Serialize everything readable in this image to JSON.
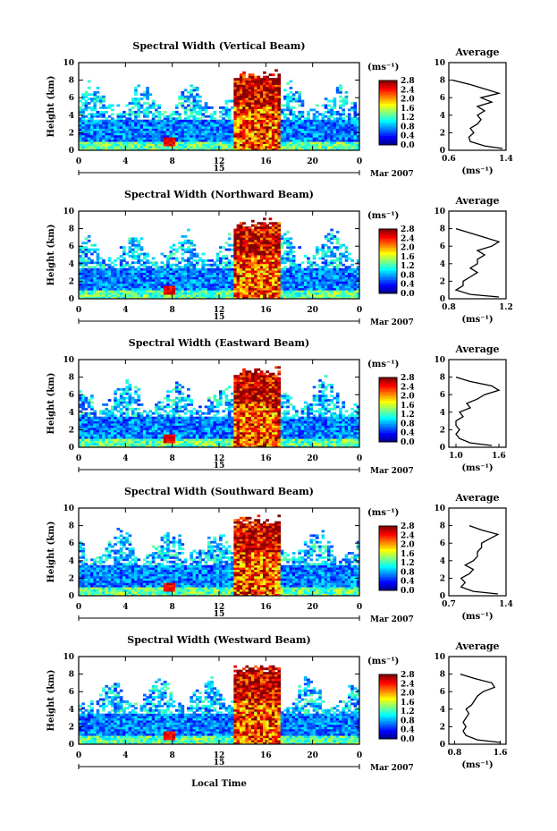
{
  "figure": {
    "xlabel": "Local Time",
    "date_label": "Mar 2007",
    "day_label": "15",
    "ylabel": "Height (km)",
    "unit_label": "(ms⁻¹)",
    "average_title": "Average",
    "average_unit": "(ms⁻¹)"
  },
  "chart_data": [
    {
      "type": "heatmap",
      "title": "Spectral Width (Vertical Beam)",
      "xlabel": "Local Time",
      "ylabel": "Height (km)",
      "x_range": [
        0,
        24
      ],
      "x_ticks": [
        "0",
        "4",
        "8",
        "12",
        "16",
        "20",
        "0"
      ],
      "y_range": [
        0,
        10
      ],
      "y_ticks": [
        "0",
        "2",
        "4",
        "6",
        "8",
        "10"
      ],
      "colorbar": {
        "range": [
          0.0,
          2.8
        ],
        "ticks": [
          "0.0",
          "0.4",
          "0.8",
          "1.2",
          "1.6",
          "2.0",
          "2.4",
          "2.8"
        ]
      },
      "average_profile": {
        "xlim": [
          0.6,
          1.4
        ],
        "x_ticks": [
          "0.6",
          "1.4"
        ],
        "heights": [
          0.2,
          0.5,
          1.0,
          1.5,
          2.0,
          2.5,
          3.0,
          3.5,
          4.0,
          4.5,
          5.0,
          5.5,
          6.0,
          6.5,
          7.0,
          7.5,
          8.0
        ],
        "values": [
          1.35,
          1.1,
          0.9,
          0.88,
          0.95,
          0.9,
          1.0,
          1.05,
          1.0,
          1.1,
          1.0,
          1.2,
          1.05,
          1.3,
          1.1,
          0.9,
          0.65
        ]
      }
    },
    {
      "type": "heatmap",
      "title": "Spectral Width (Northward Beam)",
      "xlabel": "Local Time",
      "ylabel": "Height (km)",
      "x_range": [
        0,
        24
      ],
      "x_ticks": [
        "0",
        "4",
        "8",
        "12",
        "16",
        "20",
        "0"
      ],
      "y_range": [
        0,
        10
      ],
      "y_ticks": [
        "0",
        "2",
        "4",
        "6",
        "8",
        "10"
      ],
      "colorbar": {
        "range": [
          0.0,
          2.8
        ],
        "ticks": [
          "0.0",
          "0.4",
          "0.8",
          "1.2",
          "1.6",
          "2.0",
          "2.4",
          "2.8"
        ]
      },
      "average_profile": {
        "xlim": [
          0.8,
          1.2
        ],
        "x_ticks": [
          "0.8",
          "1.2"
        ],
        "heights": [
          0.2,
          0.5,
          1.0,
          1.5,
          2.0,
          2.5,
          3.0,
          3.5,
          4.0,
          4.5,
          5.0,
          5.5,
          6.0,
          6.5,
          7.0,
          7.5,
          8.0
        ],
        "values": [
          1.15,
          0.95,
          0.85,
          0.9,
          0.9,
          0.95,
          1.0,
          0.95,
          1.0,
          1.0,
          1.05,
          1.0,
          1.1,
          1.15,
          1.05,
          0.95,
          0.85
        ]
      }
    },
    {
      "type": "heatmap",
      "title": "Spectral Width (Eastward Beam)",
      "xlabel": "Local Time",
      "ylabel": "Height (km)",
      "x_range": [
        0,
        24
      ],
      "x_ticks": [
        "0",
        "4",
        "8",
        "12",
        "16",
        "20",
        "0"
      ],
      "y_range": [
        0,
        10
      ],
      "y_ticks": [
        "0",
        "2",
        "4",
        "6",
        "8",
        "10"
      ],
      "colorbar": {
        "range": [
          0.0,
          2.8
        ],
        "ticks": [
          "0.0",
          "0.4",
          "0.8",
          "1.2",
          "1.6",
          "2.0",
          "2.4",
          "2.8"
        ]
      },
      "average_profile": {
        "xlim": [
          0.9,
          1.7
        ],
        "x_ticks": [
          "1.0",
          "1.6"
        ],
        "heights": [
          0.2,
          0.5,
          1.0,
          1.5,
          2.0,
          2.5,
          3.0,
          3.5,
          4.0,
          4.5,
          5.0,
          5.5,
          6.0,
          6.5,
          7.0,
          7.5,
          8.0
        ],
        "values": [
          1.5,
          1.2,
          1.05,
          1.0,
          1.05,
          1.0,
          1.0,
          1.1,
          1.05,
          1.2,
          1.15,
          1.3,
          1.4,
          1.6,
          1.5,
          1.2,
          1.0
        ]
      }
    },
    {
      "type": "heatmap",
      "title": "Spectral Width (Southward Beam)",
      "xlabel": "Local Time",
      "ylabel": "Height (km)",
      "x_range": [
        0,
        24
      ],
      "x_ticks": [
        "0",
        "4",
        "8",
        "12",
        "16",
        "20",
        "0"
      ],
      "y_range": [
        0,
        10
      ],
      "y_ticks": [
        "0",
        "2",
        "4",
        "6",
        "8",
        "10"
      ],
      "colorbar": {
        "range": [
          0.0,
          2.8
        ],
        "ticks": [
          "0.0",
          "0.4",
          "0.8",
          "1.2",
          "1.6",
          "2.0",
          "2.4",
          "2.8"
        ]
      },
      "average_profile": {
        "xlim": [
          0.7,
          1.4
        ],
        "x_ticks": [
          "0.7",
          "1.4"
        ],
        "heights": [
          0.2,
          0.5,
          1.0,
          1.5,
          2.0,
          2.5,
          3.0,
          3.5,
          4.0,
          4.5,
          5.0,
          5.5,
          6.0,
          6.5,
          7.0,
          7.5,
          8.0
        ],
        "values": [
          1.3,
          1.0,
          0.85,
          0.9,
          0.85,
          0.95,
          1.0,
          0.9,
          1.0,
          1.05,
          1.05,
          1.1,
          1.1,
          1.2,
          1.3,
          1.1,
          0.95
        ]
      }
    },
    {
      "type": "heatmap",
      "title": "Spectral Width (Westward Beam)",
      "xlabel": "Local Time",
      "ylabel": "Height (km)",
      "x_range": [
        0,
        24
      ],
      "x_ticks": [
        "0",
        "4",
        "8",
        "12",
        "16",
        "20",
        "0"
      ],
      "y_range": [
        0,
        10
      ],
      "y_ticks": [
        "0",
        "2",
        "4",
        "6",
        "8",
        "10"
      ],
      "colorbar": {
        "range": [
          0.0,
          2.8
        ],
        "ticks": [
          "0.0",
          "0.4",
          "0.8",
          "1.2",
          "1.6",
          "2.0",
          "2.4",
          "2.8"
        ]
      },
      "average_profile": {
        "xlim": [
          0.7,
          1.7
        ],
        "x_ticks": [
          "0.8",
          "1.6"
        ],
        "heights": [
          0.2,
          0.5,
          1.0,
          1.5,
          2.0,
          2.5,
          3.0,
          3.5,
          4.0,
          4.5,
          5.0,
          5.5,
          6.0,
          6.5,
          7.0,
          7.5,
          8.0
        ],
        "values": [
          1.6,
          1.2,
          1.0,
          0.95,
          1.0,
          0.95,
          1.0,
          1.05,
          1.0,
          1.1,
          1.15,
          1.2,
          1.3,
          1.5,
          1.45,
          1.15,
          0.9
        ]
      }
    }
  ]
}
